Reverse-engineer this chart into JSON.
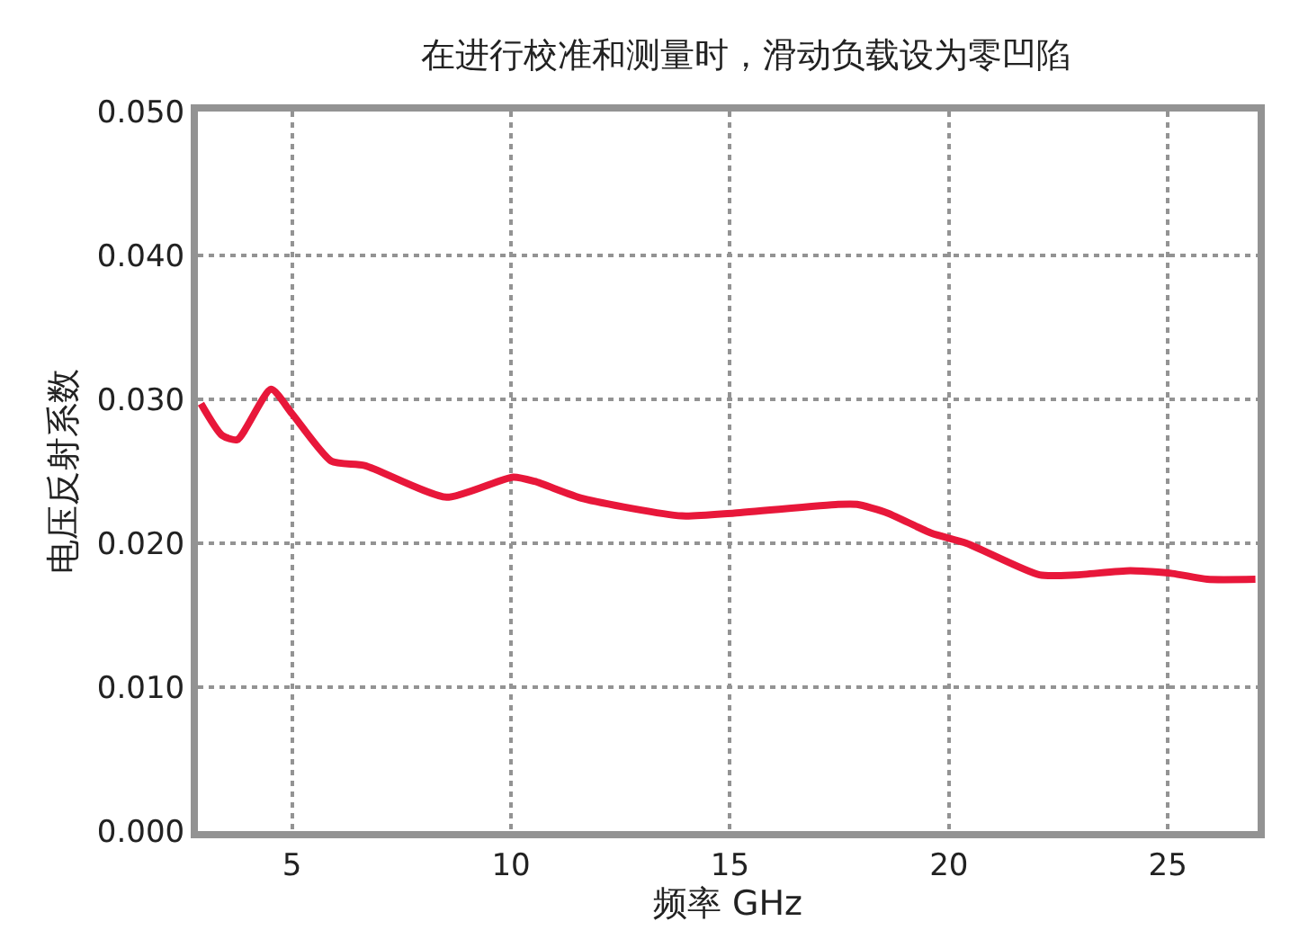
{
  "chart_data": {
    "type": "line",
    "title": "在进行校准和测量时，滑动负载设为零凹陷",
    "xlabel": "频率 GHz",
    "ylabel": "电压反射系数",
    "x": [
      2.92,
      3.4,
      3.75,
      4.52,
      5.0,
      5.9,
      6.66,
      8.53,
      10.05,
      10.54,
      11.65,
      13.9,
      15.1,
      17.47,
      17.9,
      18.6,
      19.6,
      20.4,
      22.07,
      22.9,
      24.14,
      25.1,
      25.9,
      27.0
    ],
    "series": [
      {
        "color": "#e8173a",
        "values": [
          0.0297,
          0.0275,
          0.0272,
          0.0307,
          0.029,
          0.0257,
          0.0254,
          0.0232,
          0.0246,
          0.0243,
          0.0231,
          0.0219,
          0.0221,
          0.0227,
          0.0227,
          0.0221,
          0.0207,
          0.02,
          0.0178,
          0.0178,
          0.0181,
          0.0179,
          0.0175,
          0.0175
        ]
      }
    ],
    "xlim": [
      2.85,
      27.05
    ],
    "xticks": [
      5,
      10,
      15,
      20,
      25
    ],
    "ylim": [
      0,
      0.05
    ],
    "yticks": [
      {
        "value": 0,
        "label": "0.000"
      },
      {
        "value": 0.01,
        "label": "0.010"
      },
      {
        "value": 0.02,
        "label": "0.020"
      },
      {
        "value": 0.03,
        "label": "0.030"
      },
      {
        "value": 0.04,
        "label": "0.040"
      },
      {
        "value": 0.05,
        "label": "0.050"
      }
    ],
    "grid": true,
    "marker": "none",
    "line_style": "solid"
  }
}
